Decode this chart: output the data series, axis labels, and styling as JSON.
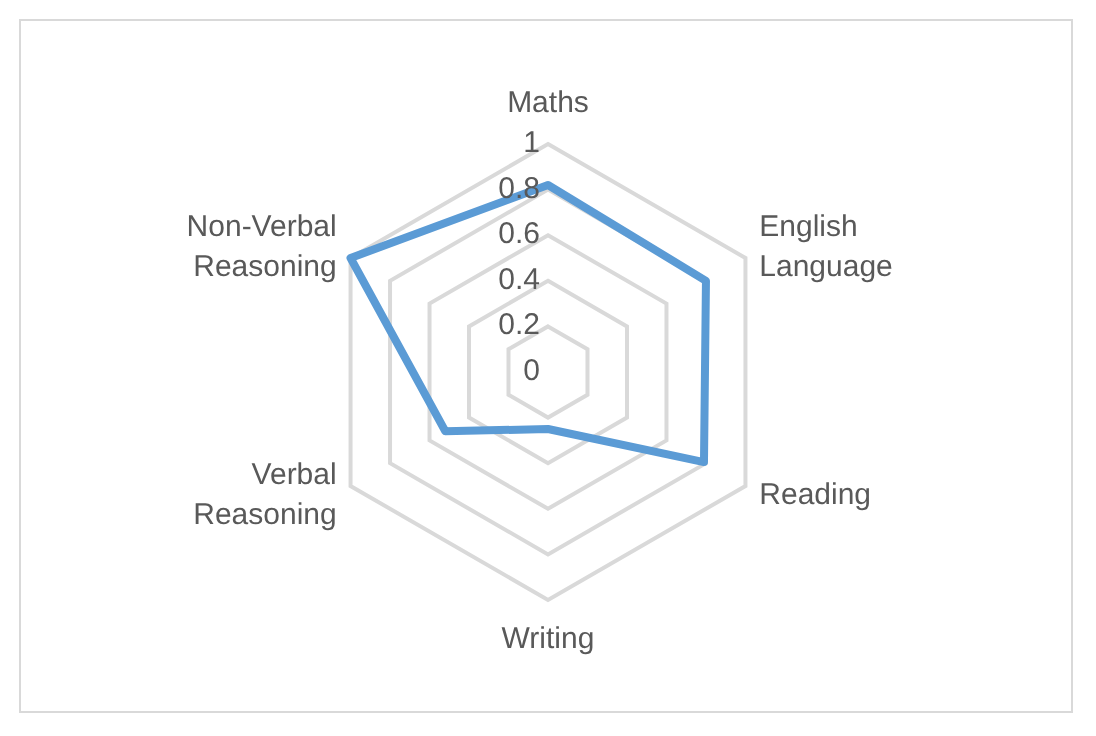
{
  "chart_data": {
    "type": "radar",
    "categories": [
      "Maths",
      "English Language",
      "Reading",
      "Writing",
      "Verbal Reasoning",
      "Non-Verbal Reasoning"
    ],
    "series": [
      {
        "color": "#5b9bd5",
        "values": [
          0.82,
          0.8,
          0.79,
          0.25,
          0.52,
          1.0
        ]
      }
    ],
    "ylim": [
      0,
      1
    ],
    "yticks": [
      0,
      0.2,
      0.4,
      0.6,
      0.8,
      1
    ],
    "grid": true
  }
}
